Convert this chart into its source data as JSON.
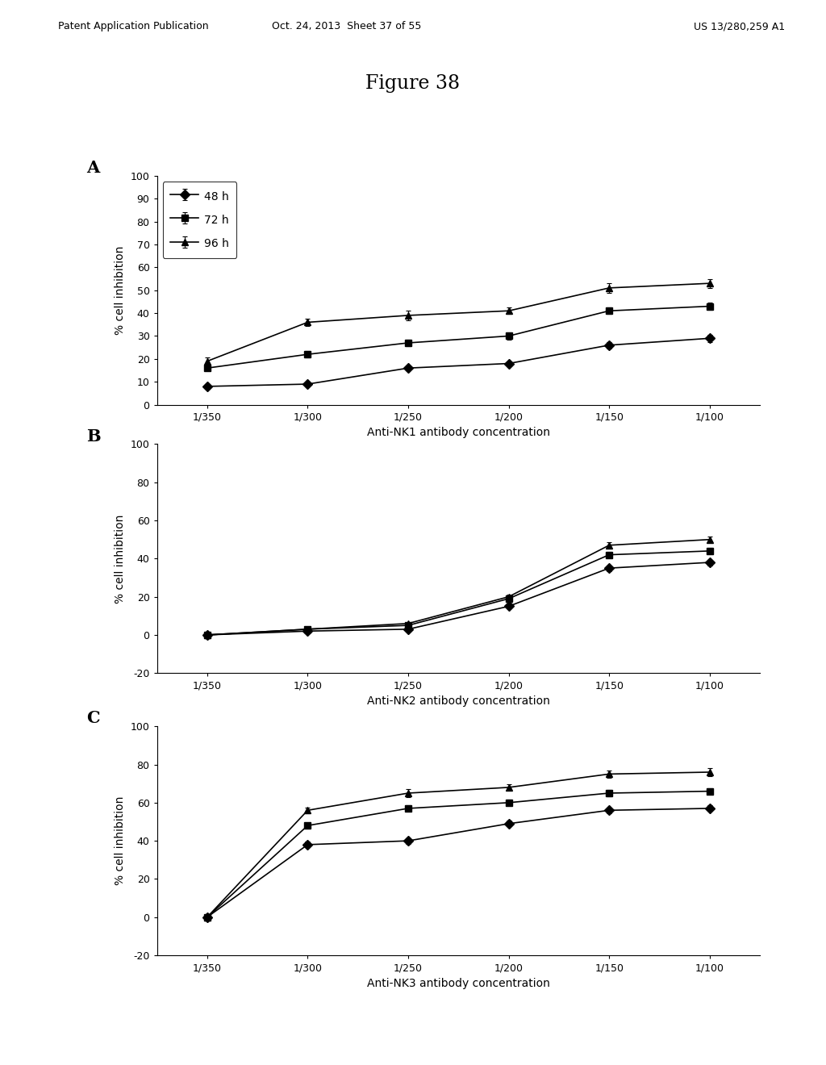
{
  "figure_title": "Figure 38",
  "header_left": "Patent Application Publication",
  "header_center": "Oct. 24, 2013  Sheet 37 of 55",
  "header_right": "US 13/280,259 A1",
  "x_labels": [
    "1/350",
    "1/300",
    "1/250",
    "1/200",
    "1/150",
    "1/100"
  ],
  "x_positions": [
    0,
    1,
    2,
    3,
    4,
    5
  ],
  "series_labels": [
    "48 h",
    "72 h",
    "96 h"
  ],
  "series_markers": [
    "D",
    "s",
    "^"
  ],
  "panel_A": {
    "label": "A",
    "xlabel": "Anti-NK1 antibody concentration",
    "ylabel": "% cell inhibition",
    "ylim": [
      0,
      100
    ],
    "yticks": [
      0,
      10,
      20,
      30,
      40,
      50,
      60,
      70,
      80,
      90,
      100
    ],
    "data_48h": [
      8,
      9,
      16,
      18,
      26,
      29
    ],
    "data_72h": [
      16,
      22,
      27,
      30,
      41,
      43
    ],
    "data_96h": [
      19,
      36,
      39,
      41,
      51,
      53
    ],
    "err_48h": [
      1,
      1,
      1,
      1,
      1.5,
      1.5
    ],
    "err_72h": [
      1,
      1.5,
      1.5,
      1.5,
      1.5,
      1.5
    ],
    "err_96h": [
      1.5,
      1.5,
      2,
      1.5,
      2,
      2
    ]
  },
  "panel_B": {
    "label": "B",
    "xlabel": "Anti-NK2 antibody concentration",
    "ylabel": "% cell inhibition",
    "ylim": [
      -20,
      100
    ],
    "yticks": [
      -20,
      0,
      20,
      40,
      60,
      80,
      100
    ],
    "data_48h": [
      0,
      2,
      3,
      15,
      35,
      38
    ],
    "data_72h": [
      0,
      3,
      5,
      19,
      42,
      44
    ],
    "data_96h": [
      0,
      3,
      6,
      20,
      47,
      50
    ],
    "err_48h": [
      0.5,
      0.5,
      0.5,
      1,
      1.5,
      1.5
    ],
    "err_72h": [
      0.5,
      0.5,
      0.5,
      1,
      1.5,
      1.5
    ],
    "err_96h": [
      0.5,
      0.5,
      0.5,
      1,
      1.5,
      1.5
    ]
  },
  "panel_C": {
    "label": "C",
    "xlabel": "Anti-NK3 antibody concentration",
    "ylabel": "% cell inhibition",
    "ylim": [
      -20,
      100
    ],
    "yticks": [
      -20,
      0,
      20,
      40,
      60,
      80,
      100
    ],
    "data_48h": [
      0,
      38,
      40,
      49,
      56,
      57
    ],
    "data_72h": [
      0,
      48,
      57,
      60,
      65,
      66
    ],
    "data_96h": [
      0,
      56,
      65,
      68,
      75,
      76
    ],
    "err_48h": [
      0.5,
      1.5,
      1.5,
      1.5,
      1.5,
      1.5
    ],
    "err_72h": [
      0.5,
      1.5,
      1.5,
      1.5,
      1.5,
      1.5
    ],
    "err_96h": [
      0.5,
      1.5,
      2,
      1.5,
      2,
      2
    ]
  },
  "line_color": "#000000",
  "marker_size": 6,
  "line_width": 1.2,
  "font_size_labels": 10,
  "font_size_title": 17,
  "font_size_panel_label": 15,
  "font_size_tick": 9,
  "font_size_header": 9,
  "legend_fontsize": 10
}
